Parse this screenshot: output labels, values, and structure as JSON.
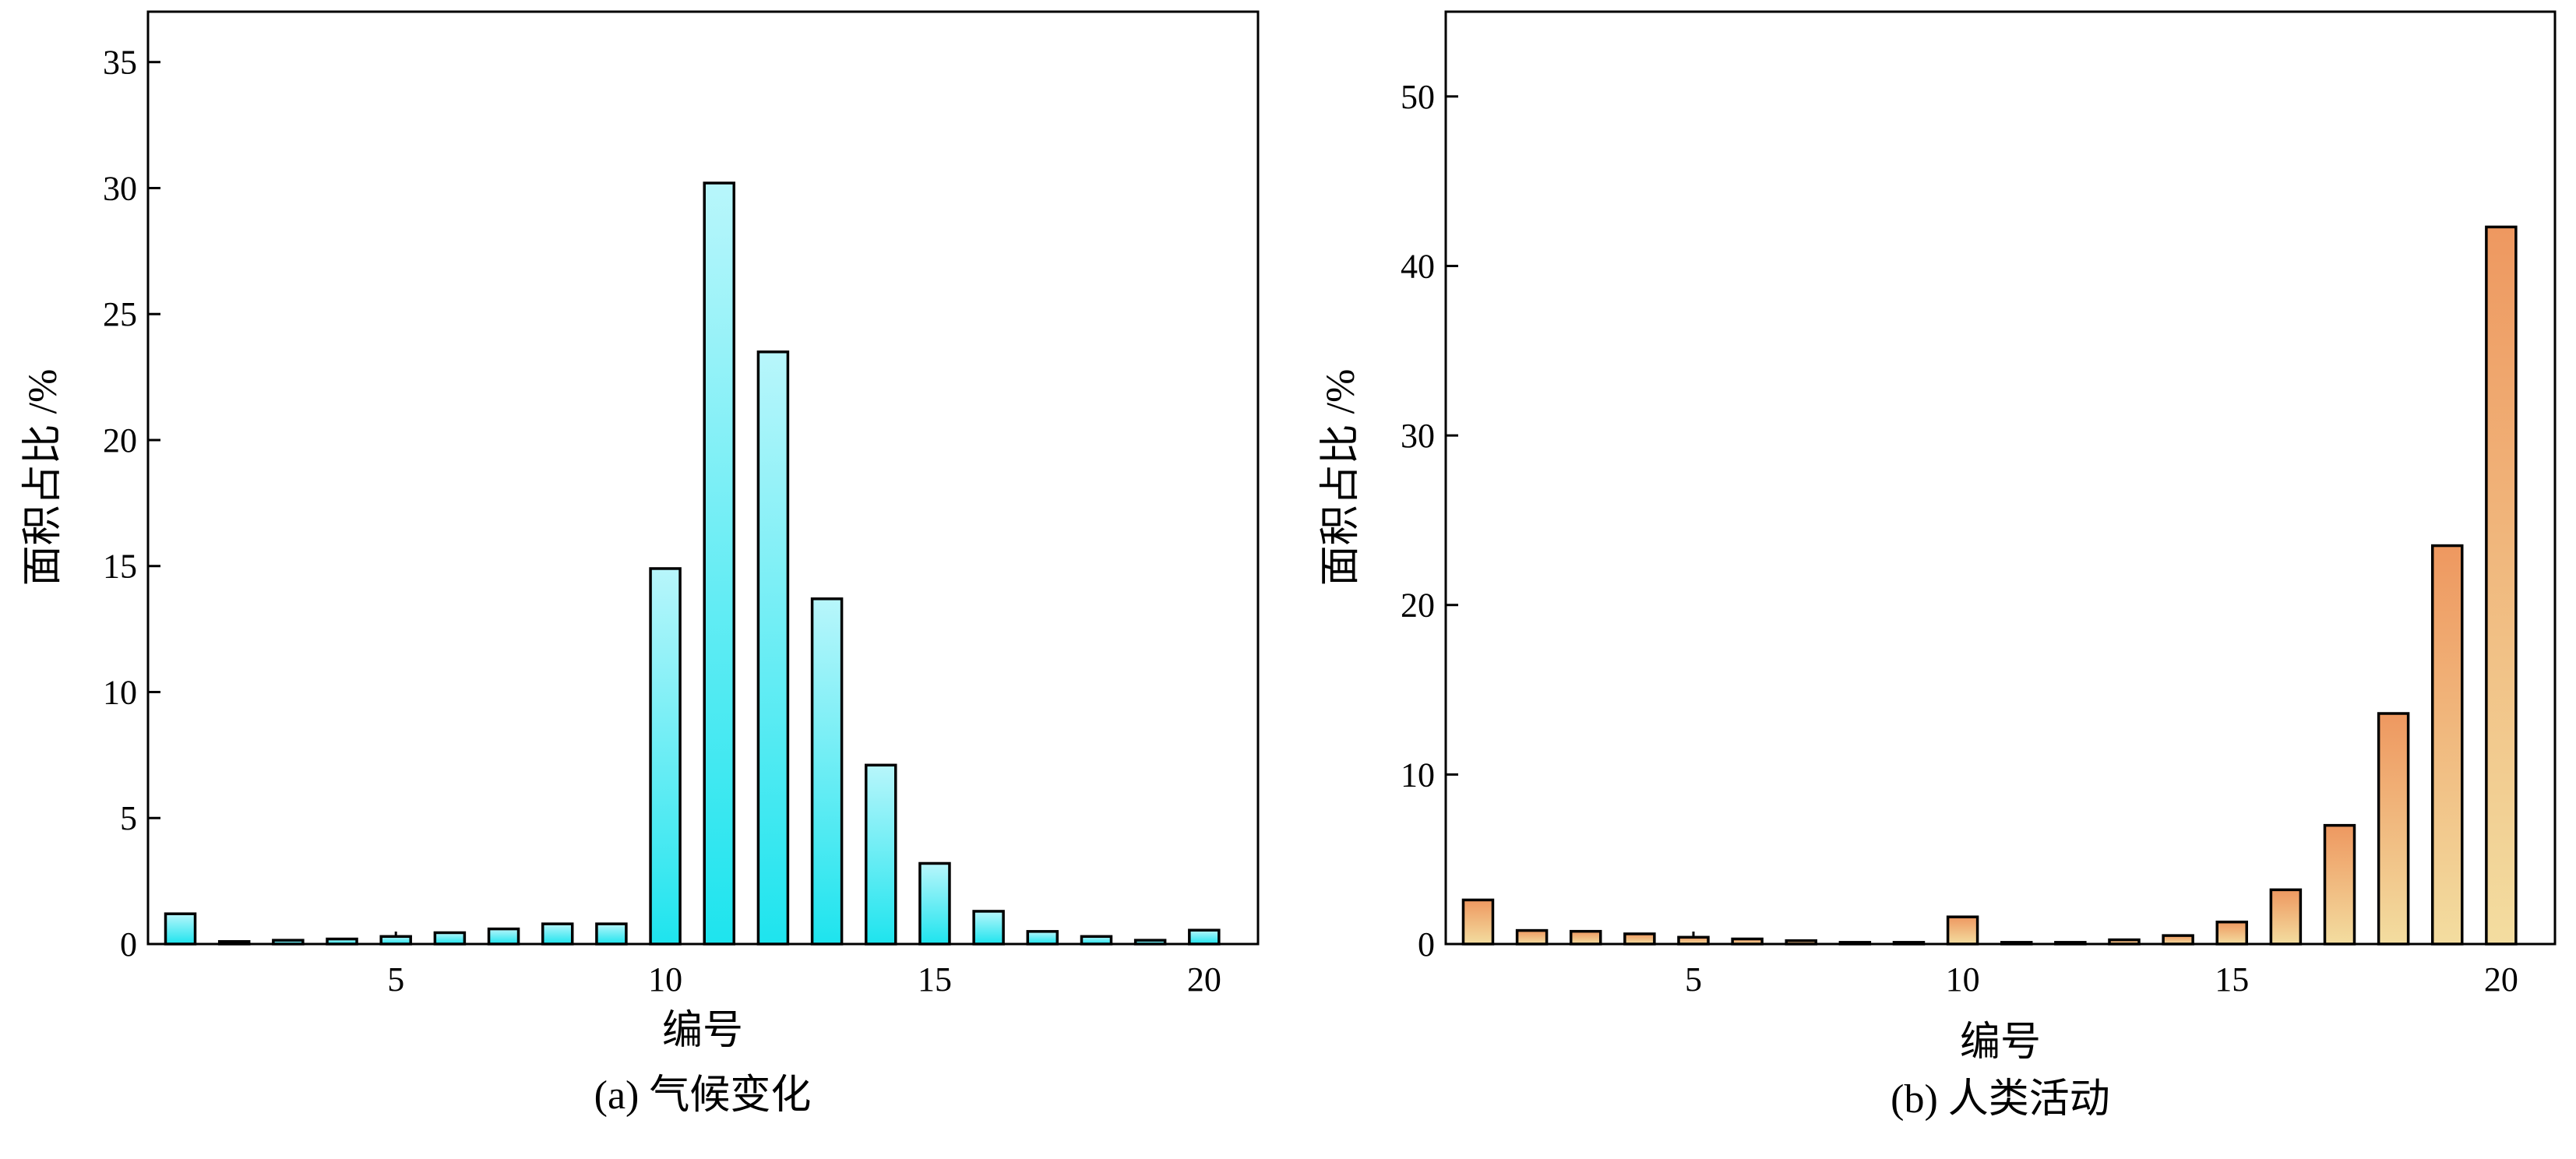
{
  "chart_data": [
    {
      "type": "bar",
      "caption": "(a) 气候变化",
      "xlabel": "编号",
      "ylabel": "面积占比 /%",
      "x": [
        1,
        2,
        3,
        4,
        5,
        6,
        7,
        8,
        9,
        10,
        11,
        12,
        13,
        14,
        15,
        16,
        17,
        18,
        19,
        20
      ],
      "values": [
        1.2,
        0.1,
        0.15,
        0.2,
        0.3,
        0.45,
        0.6,
        0.8,
        0.8,
        14.9,
        30.2,
        23.5,
        13.7,
        7.1,
        3.2,
        1.3,
        0.5,
        0.3,
        0.15,
        0.55
      ],
      "xlim": [
        0.4,
        21.0
      ],
      "ylim": [
        0,
        37
      ],
      "xticks": [
        5,
        10,
        15,
        20
      ],
      "yticks": [
        0,
        5,
        10,
        15,
        20,
        25,
        30,
        35
      ],
      "colors": {
        "top": "#b8f6fb",
        "bottom": "#1ee4ee"
      }
    },
    {
      "type": "bar",
      "caption": "(b) 人类活动",
      "xlabel": "编号",
      "ylabel": "面积占比 /%",
      "x": [
        1,
        2,
        3,
        4,
        5,
        6,
        7,
        8,
        9,
        10,
        11,
        12,
        13,
        14,
        15,
        16,
        17,
        18,
        19,
        20
      ],
      "values": [
        2.6,
        0.8,
        0.75,
        0.6,
        0.4,
        0.3,
        0.2,
        0.1,
        0.1,
        1.6,
        0.1,
        0.1,
        0.25,
        0.5,
        1.3,
        3.2,
        7.0,
        13.6,
        23.5,
        42.3
      ],
      "xlim": [
        0.4,
        21.0
      ],
      "ylim": [
        0,
        55
      ],
      "xticks": [
        5,
        10,
        15,
        20
      ],
      "yticks": [
        0,
        10,
        20,
        30,
        40,
        50
      ],
      "colors": {
        "top": "#ee9860",
        "bottom": "#f3dda0"
      }
    }
  ]
}
